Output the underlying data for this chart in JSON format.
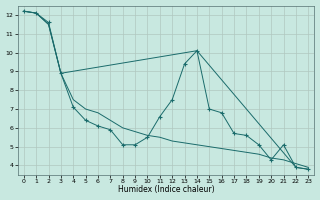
{
  "xlabel": "Humidex (Indice chaleur)",
  "bg_color": "#c8e8e0",
  "grid_color": "#b0c8c0",
  "line_color": "#1a6b6b",
  "xlim": [
    -0.5,
    23.5
  ],
  "ylim": [
    3.5,
    12.5
  ],
  "xticks": [
    0,
    1,
    2,
    3,
    4,
    5,
    6,
    7,
    8,
    9,
    10,
    11,
    12,
    13,
    14,
    15,
    16,
    17,
    18,
    19,
    20,
    21,
    22,
    23
  ],
  "yticks": [
    4,
    5,
    6,
    7,
    8,
    9,
    10,
    11,
    12
  ],
  "line1_x": [
    0,
    1,
    2,
    3,
    4,
    5,
    6,
    7,
    8,
    9,
    10,
    11,
    12,
    13,
    14,
    15,
    16,
    17,
    18,
    19,
    20,
    21,
    22,
    23
  ],
  "line1_y": [
    12.2,
    12.1,
    11.6,
    8.9,
    7.1,
    6.4,
    6.1,
    5.9,
    5.1,
    5.1,
    5.5,
    6.6,
    7.5,
    9.4,
    10.1,
    7.0,
    6.8,
    5.7,
    5.6,
    5.1,
    4.3,
    5.1,
    3.9,
    3.8
  ],
  "line2_x": [
    0,
    1,
    2,
    3,
    14,
    22,
    23
  ],
  "line2_y": [
    12.2,
    12.1,
    11.5,
    8.9,
    10.1,
    3.9,
    3.8
  ],
  "line3_x": [
    0,
    1,
    2,
    3,
    4,
    5,
    6,
    7,
    8,
    9,
    10,
    11,
    12,
    13,
    14,
    15,
    16,
    17,
    18,
    19,
    20,
    21,
    22,
    23
  ],
  "line3_y": [
    12.2,
    12.1,
    11.5,
    8.9,
    7.5,
    7.0,
    6.8,
    6.4,
    6.0,
    5.8,
    5.6,
    5.5,
    5.3,
    5.2,
    5.1,
    5.0,
    4.9,
    4.8,
    4.7,
    4.6,
    4.4,
    4.3,
    4.1,
    3.9
  ]
}
